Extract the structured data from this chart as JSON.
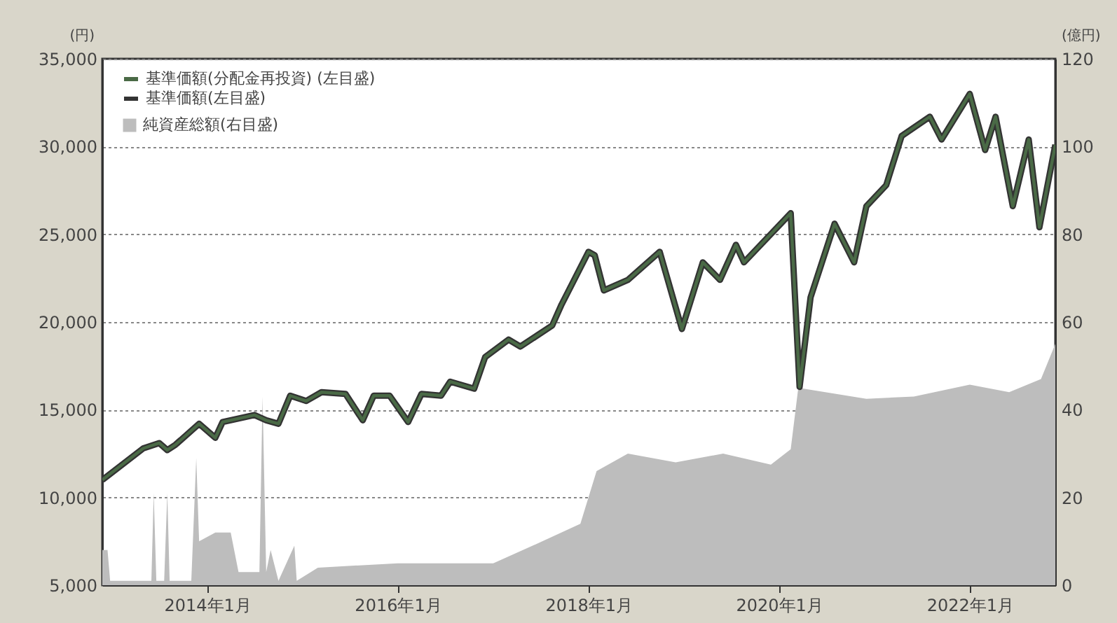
{
  "chart_data": {
    "type": "line",
    "ylabel": "(円)",
    "y2label": "(億円)",
    "xlim": [
      "2012-11-25",
      "2022-11-25"
    ],
    "xticks": [
      {
        "value": "2014-01-01",
        "label": "2014年1月"
      },
      {
        "value": "2016-01-01",
        "label": "2016年1月"
      },
      {
        "value": "2018-01-01",
        "label": "2018年1月"
      },
      {
        "value": "2020-01-01",
        "label": "2020年1月"
      },
      {
        "value": "2022-01-01",
        "label": "2022年1月"
      }
    ],
    "ylim": [
      5000,
      35000
    ],
    "yticks": [
      {
        "value": 5000,
        "label": "5,000"
      },
      {
        "value": 10000,
        "label": "10,000"
      },
      {
        "value": 15000,
        "label": "15,000"
      },
      {
        "value": 20000,
        "label": "20,000"
      },
      {
        "value": 25000,
        "label": "25,000"
      },
      {
        "value": 30000,
        "label": "30,000"
      },
      {
        "value": 35000,
        "label": "35,000"
      }
    ],
    "y2lim": [
      0,
      120
    ],
    "y2ticks": [
      0,
      20,
      40,
      60,
      80,
      100,
      120
    ],
    "grid": "y",
    "legend": "top left",
    "line_style": "solid",
    "marker": "none",
    "series": [
      {
        "name": "基準価額(分配金再投資) (左目盛)",
        "color": "#4a6a46",
        "x": [
          "2012-11-25",
          "2013-05-01",
          "2013-07-01",
          "2013-08-01",
          "2013-09-01",
          "2013-12-01",
          "2014-02-01",
          "2014-03-01",
          "2014-07-01",
          "2014-08-15",
          "2014-10-01",
          "2014-11-15",
          "2015-01-15",
          "2015-03-15",
          "2015-06-15",
          "2015-08-20",
          "2015-10-01",
          "2015-12-01",
          "2016-02-10",
          "2016-04-01",
          "2016-06-15",
          "2016-07-20",
          "2016-10-20",
          "2016-12-01",
          "2017-03-01",
          "2017-04-15",
          "2017-08-15",
          "2017-09-20",
          "2018-01-01",
          "2018-01-25",
          "2018-03-01",
          "2018-06-01",
          "2018-10-01",
          "2018-12-25",
          "2019-03-15",
          "2019-05-20",
          "2019-07-20",
          "2019-08-20",
          "2020-02-15",
          "2020-03-20",
          "2020-05-01",
          "2020-08-01",
          "2020-10-15",
          "2020-12-01",
          "2021-02-15",
          "2021-04-15",
          "2021-08-01",
          "2021-09-15",
          "2022-01-01",
          "2022-03-01",
          "2022-04-10",
          "2022-06-15",
          "2022-08-15",
          "2022-09-25",
          "2022-11-25"
        ],
        "values": [
          11000,
          12800,
          13100,
          12700,
          13000,
          14200,
          13400,
          14300,
          14700,
          14400,
          14200,
          15800,
          15500,
          16000,
          15900,
          14400,
          15800,
          15800,
          14300,
          15900,
          15800,
          16600,
          16200,
          18000,
          19000,
          18600,
          19800,
          21000,
          24000,
          23800,
          21800,
          22400,
          24000,
          19600,
          23400,
          22400,
          24400,
          23400,
          26200,
          16300,
          21400,
          25600,
          23400,
          26600,
          27800,
          30600,
          31700,
          30400,
          33000,
          29800,
          31700,
          26600,
          30400,
          25400,
          30100
        ]
      },
      {
        "name": "基準価額(左目盛)",
        "color": "#333333",
        "x": [
          "2012-11-25",
          "2013-05-01",
          "2013-07-01",
          "2013-08-01",
          "2013-09-01",
          "2013-12-01",
          "2014-02-01",
          "2014-03-01",
          "2014-07-01",
          "2014-08-15",
          "2014-10-01",
          "2014-11-15",
          "2015-01-15",
          "2015-03-15",
          "2015-06-15",
          "2015-08-20",
          "2015-10-01",
          "2015-12-01",
          "2016-02-10",
          "2016-04-01",
          "2016-06-15",
          "2016-07-20",
          "2016-10-20",
          "2016-12-01",
          "2017-03-01",
          "2017-04-15",
          "2017-08-15",
          "2017-09-20",
          "2018-01-01",
          "2018-01-25",
          "2018-03-01",
          "2018-06-01",
          "2018-10-01",
          "2018-12-25",
          "2019-03-15",
          "2019-05-20",
          "2019-07-20",
          "2019-08-20",
          "2020-02-15",
          "2020-03-20",
          "2020-05-01",
          "2020-08-01",
          "2020-10-15",
          "2020-12-01",
          "2021-02-15",
          "2021-04-15",
          "2021-08-01",
          "2021-09-15",
          "2022-01-01",
          "2022-03-01",
          "2022-04-10",
          "2022-06-15",
          "2022-08-15",
          "2022-09-25",
          "2022-11-25"
        ],
        "values": [
          11000,
          12800,
          13100,
          12700,
          13000,
          14200,
          13400,
          14300,
          14700,
          14400,
          14200,
          15800,
          15500,
          16000,
          15900,
          14400,
          15800,
          15800,
          14300,
          15900,
          15800,
          16600,
          16200,
          18000,
          19000,
          18600,
          19800,
          21000,
          24000,
          23800,
          21800,
          22400,
          24000,
          19600,
          23400,
          22400,
          24400,
          23400,
          26200,
          16300,
          21400,
          25600,
          23400,
          26600,
          27800,
          30600,
          31700,
          30400,
          33000,
          29800,
          31700,
          26600,
          30400,
          25400,
          30100
        ]
      },
      {
        "name": "純資産総額(右目盛)",
        "color": "#bdbdbd",
        "type": "area",
        "axis": "y2",
        "x": [
          "2012-11-25",
          "2012-12-15",
          "2012-12-25",
          "2013-06-01",
          "2013-06-10",
          "2013-06-20",
          "2013-07-20",
          "2013-08-01",
          "2013-08-10",
          "2013-11-01",
          "2013-11-20",
          "2013-12-01",
          "2014-02-01",
          "2014-04-01",
          "2014-05-01",
          "2014-07-20",
          "2014-08-01",
          "2014-08-15",
          "2014-09-01",
          "2014-10-01",
          "2014-12-01",
          "2014-12-10",
          "2015-03-01",
          "2016-01-01",
          "2017-01-01",
          "2017-06-01",
          "2017-12-01",
          "2018-02-01",
          "2018-06-01",
          "2018-12-01",
          "2019-06-01",
          "2019-12-01",
          "2020-02-15",
          "2020-03-15",
          "2020-12-01",
          "2021-06-01",
          "2022-01-01",
          "2022-06-01",
          "2022-10-01",
          "2022-11-25"
        ],
        "values": [
          8,
          8,
          1,
          1,
          21,
          1,
          1,
          21,
          1,
          1,
          29,
          10,
          12,
          12,
          3,
          3,
          43,
          3,
          8,
          1,
          9,
          1,
          4,
          5,
          5,
          9,
          14,
          26,
          30,
          28,
          30,
          27.5,
          31,
          45,
          42.5,
          43,
          45.7,
          44,
          47,
          55
        ]
      }
    ]
  }
}
